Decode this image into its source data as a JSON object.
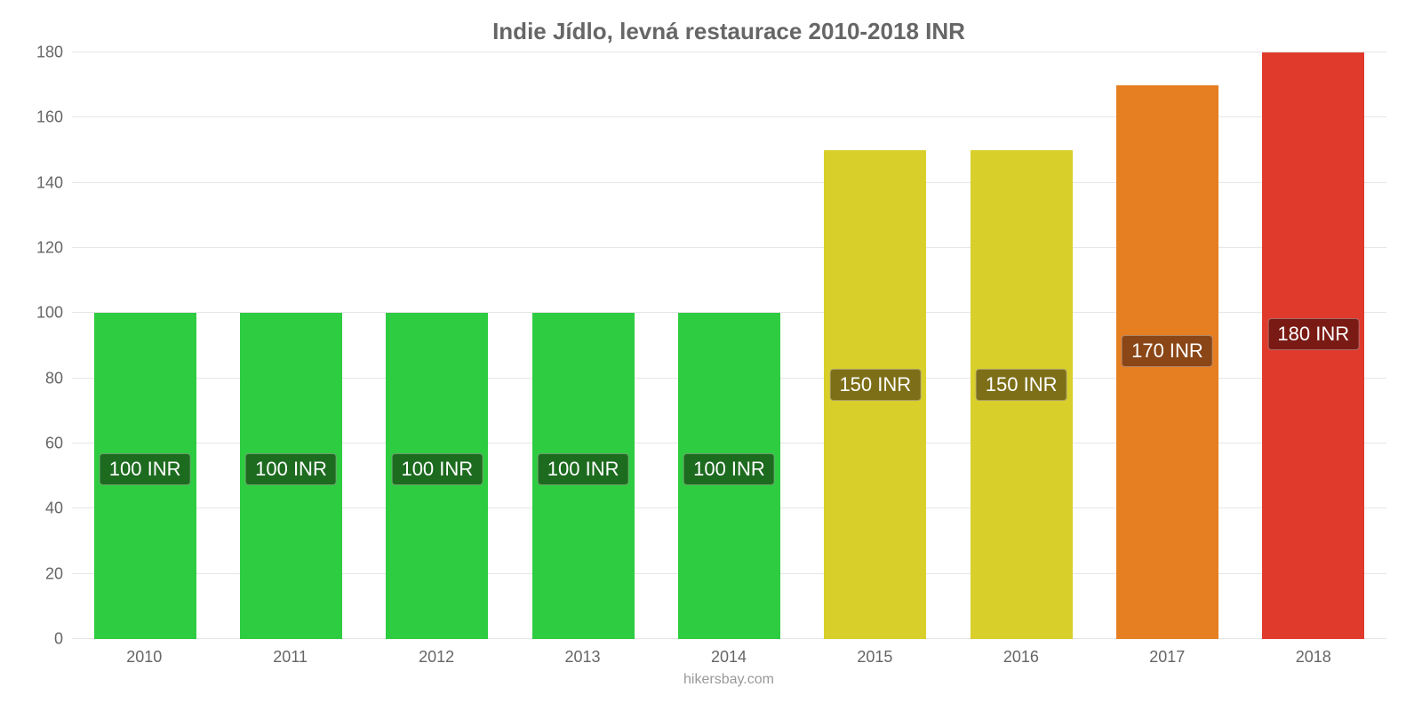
{
  "chart": {
    "type": "bar",
    "title": "Indie Jídlo, levná restaurace 2010-2018 INR",
    "title_fontsize": 26,
    "title_color": "#666666",
    "footer": "hikersbay.com",
    "footer_color": "#999999",
    "footer_fontsize": 16,
    "background_color": "#ffffff",
    "grid_color": "#e6e6e6",
    "axis_label_color": "#666666",
    "axis_fontsize": 18,
    "ylim": [
      0,
      180
    ],
    "ytick_step": 20,
    "yticks": [
      0,
      20,
      40,
      60,
      80,
      100,
      120,
      140,
      160,
      180
    ],
    "categories": [
      "2010",
      "2011",
      "2012",
      "2013",
      "2014",
      "2015",
      "2016",
      "2017",
      "2018"
    ],
    "values": [
      100,
      100,
      100,
      100,
      100,
      150,
      150,
      170,
      180
    ],
    "value_labels": [
      "100 INR",
      "100 INR",
      "100 INR",
      "100 INR",
      "100 INR",
      "150 INR",
      "150 INR",
      "170 INR",
      "180 INR"
    ],
    "bar_colors": [
      "#2ecc40",
      "#2ecc40",
      "#2ecc40",
      "#2ecc40",
      "#2ecc40",
      "#d9cf2b",
      "#d9cf2b",
      "#e67e22",
      "#e03a2d"
    ],
    "bar_border_colors": [
      "#2ecc40",
      "#2ecc40",
      "#2ecc40",
      "#2ecc40",
      "#2ecc40",
      "#d9cf2b",
      "#d9cf2b",
      "#e67e22",
      "#e03a2d"
    ],
    "badge_colors": [
      "#1d6b1f",
      "#1d6b1f",
      "#1d6b1f",
      "#1d6b1f",
      "#1d6b1f",
      "#7d6f18",
      "#7d6f18",
      "#8a4616",
      "#7a1a14"
    ],
    "badge_fontsize": 22,
    "bar_width_pct": 70
  }
}
